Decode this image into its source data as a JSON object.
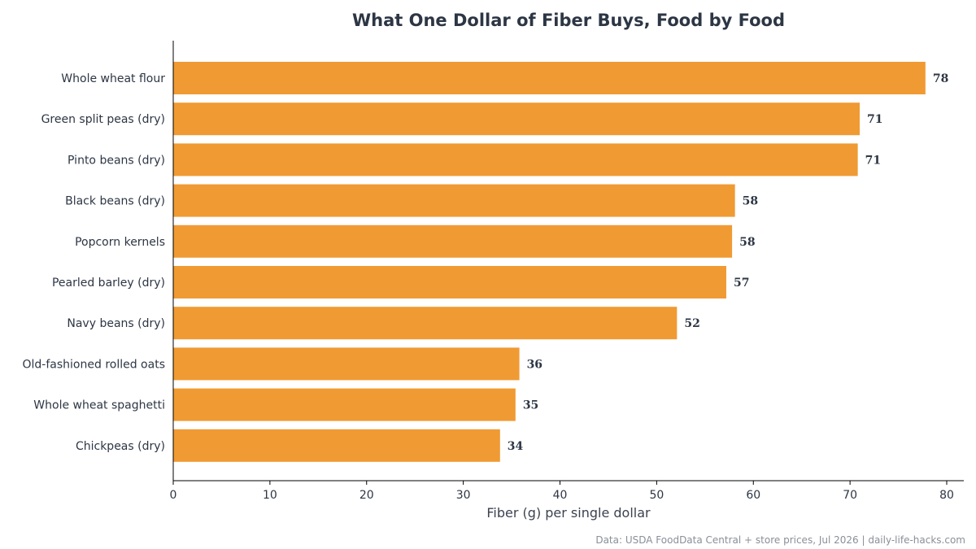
{
  "chart_data": {
    "type": "bar",
    "orientation": "horizontal",
    "title": "What One Dollar of Fiber Buys, Food by Food",
    "xlabel": "Fiber (g) per single dollar",
    "ylabel": "",
    "categories": [
      "Whole wheat flour",
      "Green split peas (dry)",
      "Pinto beans (dry)",
      "Black beans (dry)",
      "Popcorn kernels",
      "Pearled barley (dry)",
      "Navy beans (dry)",
      "Old-fashioned rolled oats",
      "Whole wheat spaghetti",
      "Chickpeas (dry)"
    ],
    "values": [
      77.8,
      71.0,
      70.8,
      58.1,
      57.8,
      57.2,
      52.1,
      35.8,
      35.4,
      33.8
    ],
    "value_labels": [
      "78",
      "71",
      "71",
      "58",
      "58",
      "57",
      "52",
      "36",
      "35",
      "34"
    ],
    "xlim": [
      0,
      82
    ],
    "xticks": [
      0,
      10,
      20,
      30,
      40,
      50,
      60,
      70,
      80
    ],
    "grid": false,
    "bar_color": "#f09a33",
    "text_color": "#2d3644",
    "source": "Data: USDA FoodData Central + store prices, Jul 2026 | daily-life-hacks.com"
  }
}
